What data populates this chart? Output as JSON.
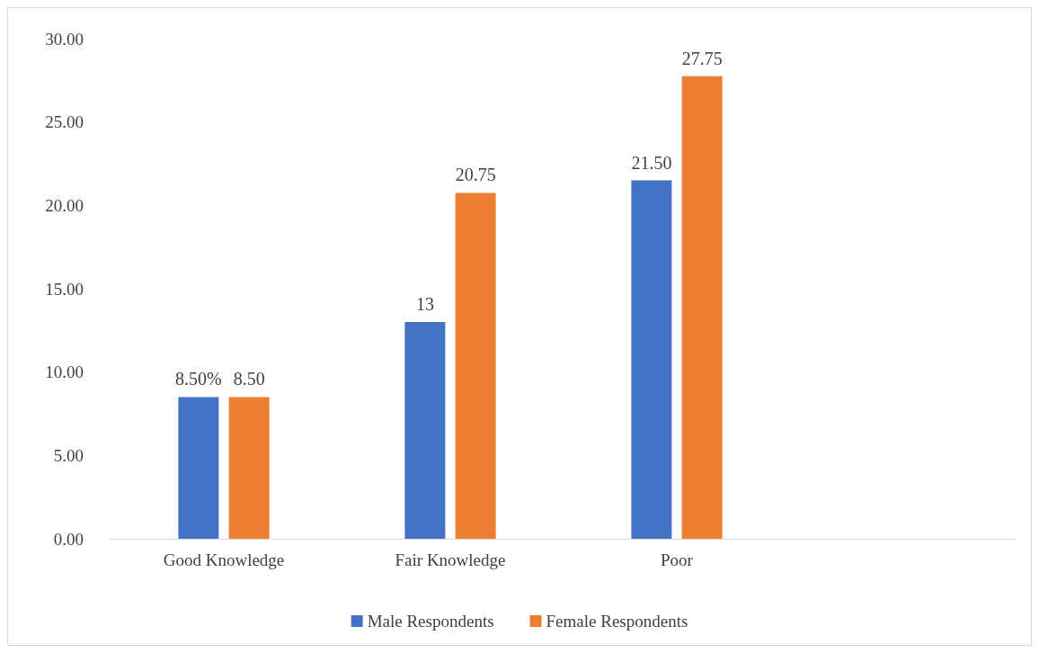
{
  "chart_data": {
    "type": "bar",
    "categories": [
      "Good Knowledge",
      "Fair Knowledge",
      "Poor",
      null
    ],
    "series": [
      {
        "name": "Male Respondents",
        "color": "#4472c4",
        "values": [
          8.5,
          13,
          21.5,
          null
        ],
        "value_labels": [
          "8.50%",
          "13",
          "21.50",
          null
        ]
      },
      {
        "name": "Female Respondents",
        "color": "#ed7d31",
        "values": [
          8.5,
          20.75,
          27.75,
          null
        ],
        "value_labels": [
          "8.50",
          "20.75",
          "27.75",
          null
        ]
      }
    ],
    "ylim": [
      0,
      30
    ],
    "yticks": [
      {
        "value": 0,
        "label": "0.00"
      },
      {
        "value": 5,
        "label": "5.00"
      },
      {
        "value": 10,
        "label": "10.00"
      },
      {
        "value": 15,
        "label": "15.00"
      },
      {
        "value": 20,
        "label": "20.00"
      },
      {
        "value": 25,
        "label": "25.00"
      },
      {
        "value": 30,
        "label": "30.00"
      }
    ],
    "grid": false,
    "legend": "bottom"
  }
}
